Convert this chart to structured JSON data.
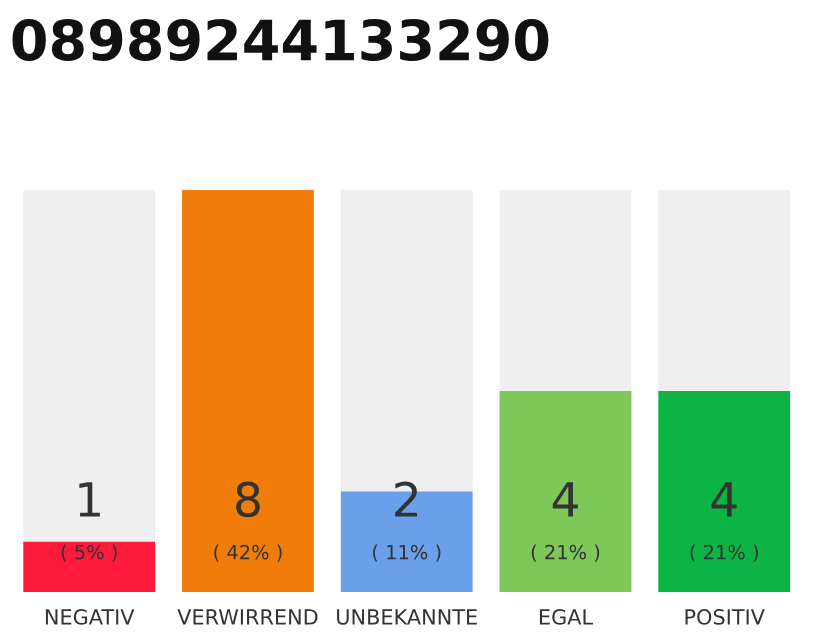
{
  "chart_data": {
    "type": "bar",
    "title": "08989244133290",
    "categories": [
      "NEGATIV",
      "VERWIRREND",
      "UNBEKANNTE",
      "EGAL",
      "POSITIV"
    ],
    "values": [
      1,
      8,
      2,
      4,
      4
    ],
    "colors": [
      "#ff1a3c",
      "#f07d0a",
      "#6aa0ea",
      "#7ec85a",
      "#0cb445"
    ],
    "data_labels": true,
    "annotations": [
      "( 5% )",
      "( 42% )",
      "( 11% )",
      "( 21% )",
      "( 21% )"
    ],
    "grid": false,
    "legend": false
  }
}
